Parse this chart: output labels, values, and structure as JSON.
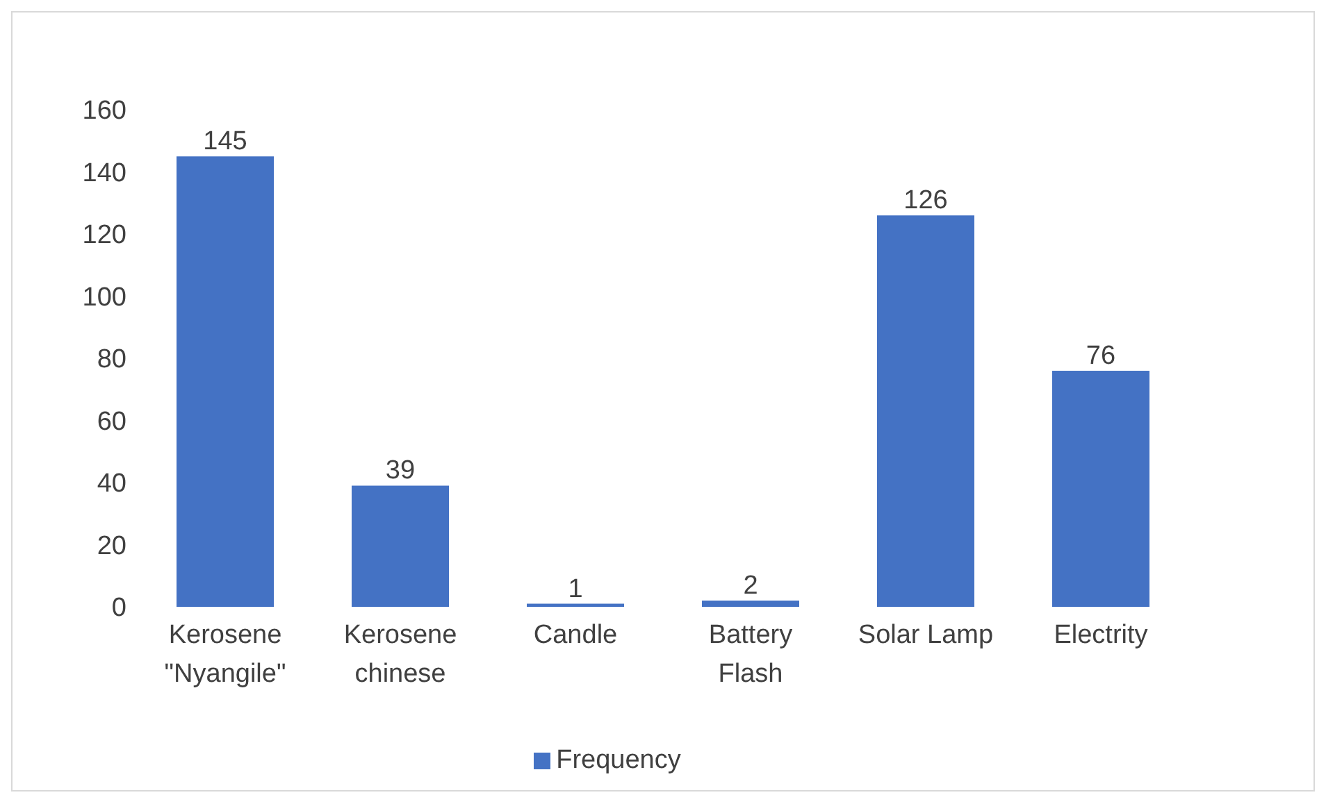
{
  "chart_data": {
    "type": "bar",
    "categories": [
      "Kerosene \"Nyangile\"",
      "Kerosene chinese",
      "Candle",
      "Battery Flash",
      "Solar Lamp",
      "Electrity"
    ],
    "series": [
      {
        "name": "Frequency",
        "color": "#4472c4",
        "values": [
          145,
          39,
          1,
          2,
          126,
          76
        ]
      }
    ],
    "ylim": [
      0,
      160
    ],
    "yticks": [
      0,
      20,
      40,
      60,
      80,
      100,
      120,
      140,
      160
    ],
    "data_labels": true,
    "legend": "bottom",
    "grid": false
  }
}
